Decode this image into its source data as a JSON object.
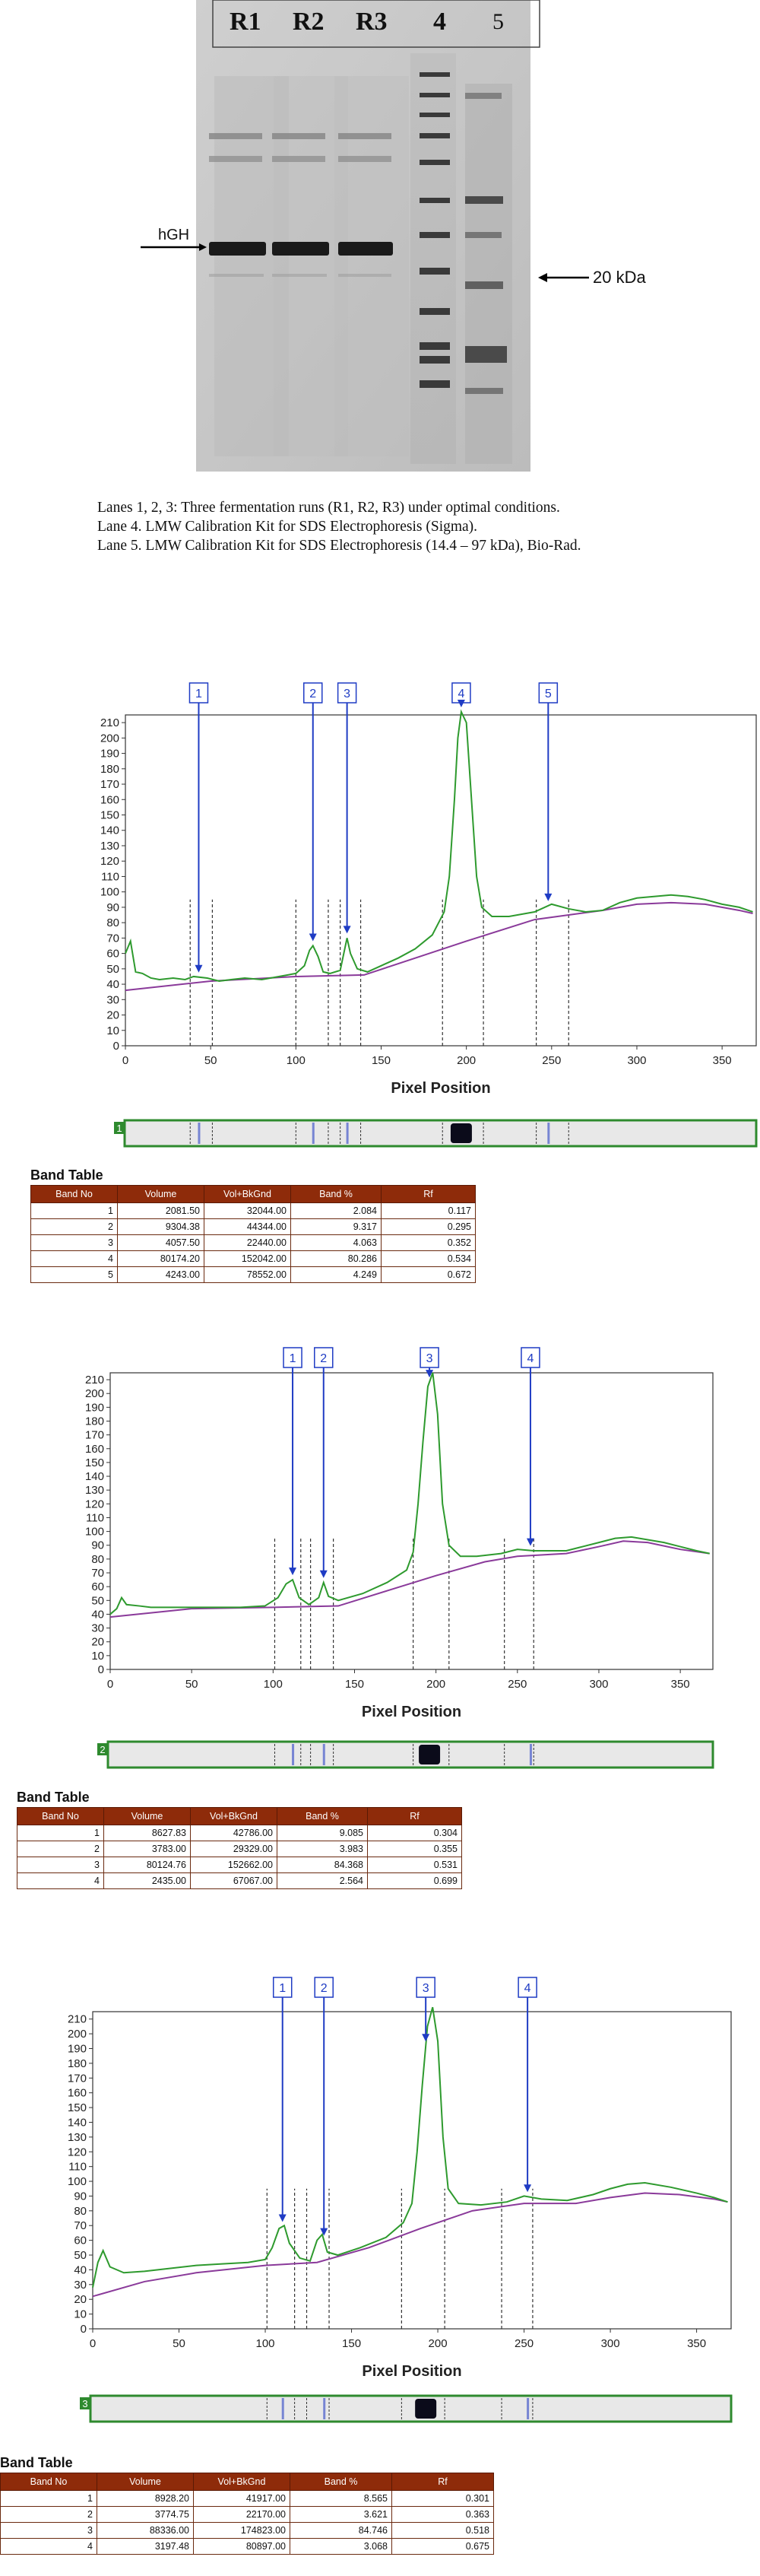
{
  "gel": {
    "lane_labels": [
      "R1",
      "R2",
      "R3",
      "4",
      "5"
    ],
    "hgh_label": "hGH",
    "kda_label": "20 kDa",
    "caption_lines": [
      "Lanes 1, 2, 3: Three fermentation runs (R1, R2, R3) under optimal conditions.",
      "Lane 4. LMW Calibration Kit for SDS Electrophoresis (Sigma).",
      "Lane 5. LMW Calibration Kit for SDS Electrophoresis (14.4 – 97 kDa), Bio-Rad."
    ]
  },
  "colors": {
    "profile_line": "#2e9a2e",
    "baseline": "#8a3a9a",
    "band_marker": "#1f3cc4",
    "table_header": "#8e2b0a",
    "lane_strip_border": "#2e8a2e"
  },
  "table_headers": [
    "Band No",
    "Volume",
    "Vol+BkGnd",
    "Band %",
    "Rf"
  ],
  "chart_data": [
    {
      "type": "line",
      "lane_number": "1",
      "xlabel": "Pixel Position",
      "xlim": [
        0,
        370
      ],
      "ylim": [
        0,
        215
      ],
      "x_ticks": [
        0,
        50,
        100,
        150,
        200,
        250,
        300,
        350
      ],
      "y_ticks": [
        0,
        10,
        20,
        30,
        40,
        50,
        60,
        70,
        80,
        90,
        100,
        110,
        120,
        130,
        140,
        150,
        160,
        170,
        180,
        190,
        200,
        210
      ],
      "profile": [
        [
          0,
          60
        ],
        [
          3,
          68
        ],
        [
          6,
          48
        ],
        [
          10,
          47
        ],
        [
          15,
          44
        ],
        [
          20,
          43
        ],
        [
          28,
          44
        ],
        [
          35,
          43
        ],
        [
          40,
          45
        ],
        [
          48,
          44
        ],
        [
          55,
          42
        ],
        [
          62,
          43
        ],
        [
          70,
          44
        ],
        [
          80,
          43
        ],
        [
          90,
          45
        ],
        [
          100,
          47
        ],
        [
          105,
          52
        ],
        [
          108,
          62
        ],
        [
          110,
          65
        ],
        [
          113,
          58
        ],
        [
          116,
          48
        ],
        [
          120,
          47
        ],
        [
          126,
          49
        ],
        [
          130,
          70
        ],
        [
          132,
          60
        ],
        [
          136,
          50
        ],
        [
          142,
          48
        ],
        [
          150,
          52
        ],
        [
          160,
          57
        ],
        [
          170,
          63
        ],
        [
          180,
          72
        ],
        [
          187,
          87
        ],
        [
          190,
          110
        ],
        [
          193,
          160
        ],
        [
          195,
          200
        ],
        [
          197,
          217
        ],
        [
          200,
          210
        ],
        [
          203,
          160
        ],
        [
          206,
          110
        ],
        [
          209,
          90
        ],
        [
          215,
          84
        ],
        [
          225,
          84
        ],
        [
          240,
          87
        ],
        [
          250,
          92
        ],
        [
          260,
          89
        ],
        [
          270,
          87
        ],
        [
          280,
          88
        ],
        [
          290,
          93
        ],
        [
          300,
          96
        ],
        [
          310,
          97
        ],
        [
          320,
          98
        ],
        [
          330,
          97
        ],
        [
          340,
          95
        ],
        [
          350,
          92
        ],
        [
          360,
          90
        ],
        [
          368,
          87
        ]
      ],
      "baseline": [
        [
          0,
          36
        ],
        [
          50,
          42
        ],
        [
          100,
          45
        ],
        [
          140,
          46
        ],
        [
          170,
          57
        ],
        [
          200,
          68
        ],
        [
          240,
          82
        ],
        [
          260,
          85
        ],
        [
          280,
          88
        ],
        [
          300,
          92
        ],
        [
          320,
          93
        ],
        [
          340,
          92
        ],
        [
          360,
          88
        ],
        [
          368,
          86
        ]
      ],
      "markers": [
        {
          "label": "1",
          "x": 43
        },
        {
          "label": "2",
          "x": 110
        },
        {
          "label": "3",
          "x": 130
        },
        {
          "label": "4",
          "x": 197
        },
        {
          "label": "5",
          "x": 248
        }
      ],
      "boundaries": [
        38,
        51,
        100,
        119,
        126,
        138,
        186,
        210,
        241,
        260
      ],
      "bands": [
        {
          "band_no": "1",
          "volume": "2081.50",
          "vol_bkgnd": "32044.00",
          "band_pct": "2.084",
          "rf": "0.117"
        },
        {
          "band_no": "2",
          "volume": "9304.38",
          "vol_bkgnd": "44344.00",
          "band_pct": "9.317",
          "rf": "0.295"
        },
        {
          "band_no": "3",
          "volume": "4057.50",
          "vol_bkgnd": "22440.00",
          "band_pct": "4.063",
          "rf": "0.352"
        },
        {
          "band_no": "4",
          "volume": "80174.20",
          "vol_bkgnd": "152042.00",
          "band_pct": "80.286",
          "rf": "0.534"
        },
        {
          "band_no": "5",
          "volume": "4243.00",
          "vol_bkgnd": "78552.00",
          "band_pct": "4.249",
          "rf": "0.672"
        }
      ]
    },
    {
      "type": "line",
      "lane_number": "2",
      "xlabel": "Pixel Position",
      "xlim": [
        0,
        370
      ],
      "ylim": [
        0,
        215
      ],
      "x_ticks": [
        0,
        50,
        100,
        150,
        200,
        250,
        300,
        350
      ],
      "y_ticks": [
        0,
        10,
        20,
        30,
        40,
        50,
        60,
        70,
        80,
        90,
        100,
        110,
        120,
        130,
        140,
        150,
        160,
        170,
        180,
        190,
        200,
        210
      ],
      "profile": [
        [
          0,
          40
        ],
        [
          4,
          44
        ],
        [
          7,
          52
        ],
        [
          10,
          47
        ],
        [
          18,
          46
        ],
        [
          25,
          45
        ],
        [
          40,
          45
        ],
        [
          60,
          45
        ],
        [
          80,
          45
        ],
        [
          95,
          46
        ],
        [
          103,
          52
        ],
        [
          108,
          62
        ],
        [
          112,
          65
        ],
        [
          116,
          52
        ],
        [
          122,
          47
        ],
        [
          128,
          52
        ],
        [
          131,
          63
        ],
        [
          134,
          53
        ],
        [
          140,
          50
        ],
        [
          155,
          55
        ],
        [
          170,
          63
        ],
        [
          182,
          72
        ],
        [
          186,
          85
        ],
        [
          189,
          120
        ],
        [
          192,
          165
        ],
        [
          195,
          205
        ],
        [
          198,
          215
        ],
        [
          201,
          185
        ],
        [
          204,
          120
        ],
        [
          208,
          90
        ],
        [
          215,
          82
        ],
        [
          225,
          82
        ],
        [
          240,
          84
        ],
        [
          250,
          87
        ],
        [
          260,
          86
        ],
        [
          270,
          86
        ],
        [
          280,
          86
        ],
        [
          290,
          89
        ],
        [
          300,
          92
        ],
        [
          310,
          95
        ],
        [
          320,
          96
        ],
        [
          330,
          94
        ],
        [
          340,
          92
        ],
        [
          350,
          89
        ],
        [
          360,
          86
        ],
        [
          368,
          84
        ]
      ],
      "baseline": [
        [
          0,
          38
        ],
        [
          50,
          44
        ],
        [
          100,
          45
        ],
        [
          140,
          46
        ],
        [
          170,
          57
        ],
        [
          200,
          68
        ],
        [
          230,
          78
        ],
        [
          250,
          82
        ],
        [
          280,
          84
        ],
        [
          300,
          89
        ],
        [
          315,
          93
        ],
        [
          330,
          92
        ],
        [
          350,
          87
        ],
        [
          368,
          84
        ]
      ],
      "markers": [
        {
          "label": "1",
          "x": 112
        },
        {
          "label": "2",
          "x": 131
        },
        {
          "label": "3",
          "x": 196
        },
        {
          "label": "4",
          "x": 258
        }
      ],
      "boundaries": [
        101,
        117,
        123,
        137,
        186,
        208,
        242,
        260
      ],
      "bands": [
        {
          "band_no": "1",
          "volume": "8627.83",
          "vol_bkgnd": "42786.00",
          "band_pct": "9.085",
          "rf": "0.304"
        },
        {
          "band_no": "2",
          "volume": "3783.00",
          "vol_bkgnd": "29329.00",
          "band_pct": "3.983",
          "rf": "0.355"
        },
        {
          "band_no": "3",
          "volume": "80124.76",
          "vol_bkgnd": "152662.00",
          "band_pct": "84.368",
          "rf": "0.531"
        },
        {
          "band_no": "4",
          "volume": "2435.00",
          "vol_bkgnd": "67067.00",
          "band_pct": "2.564",
          "rf": "0.699"
        }
      ]
    },
    {
      "type": "line",
      "lane_number": "3",
      "xlabel": "Pixel Position",
      "xlim": [
        0,
        370
      ],
      "ylim": [
        0,
        215
      ],
      "x_ticks": [
        0,
        50,
        100,
        150,
        200,
        250,
        300,
        350
      ],
      "y_ticks": [
        0,
        10,
        20,
        30,
        40,
        50,
        60,
        70,
        80,
        90,
        100,
        110,
        120,
        130,
        140,
        150,
        160,
        170,
        180,
        190,
        200,
        210
      ],
      "profile": [
        [
          0,
          28
        ],
        [
          3,
          45
        ],
        [
          6,
          53
        ],
        [
          10,
          42
        ],
        [
          18,
          38
        ],
        [
          30,
          39
        ],
        [
          45,
          41
        ],
        [
          60,
          43
        ],
        [
          75,
          44
        ],
        [
          90,
          45
        ],
        [
          100,
          47
        ],
        [
          104,
          55
        ],
        [
          108,
          68
        ],
        [
          111,
          70
        ],
        [
          114,
          58
        ],
        [
          120,
          48
        ],
        [
          126,
          46
        ],
        [
          130,
          60
        ],
        [
          133,
          64
        ],
        [
          136,
          52
        ],
        [
          142,
          50
        ],
        [
          155,
          55
        ],
        [
          170,
          62
        ],
        [
          180,
          72
        ],
        [
          185,
          85
        ],
        [
          188,
          120
        ],
        [
          191,
          165
        ],
        [
          194,
          205
        ],
        [
          197,
          218
        ],
        [
          200,
          195
        ],
        [
          203,
          130
        ],
        [
          206,
          95
        ],
        [
          212,
          85
        ],
        [
          225,
          84
        ],
        [
          240,
          86
        ],
        [
          250,
          90
        ],
        [
          260,
          88
        ],
        [
          275,
          87
        ],
        [
          290,
          91
        ],
        [
          300,
          95
        ],
        [
          310,
          98
        ],
        [
          320,
          99
        ],
        [
          335,
          96
        ],
        [
          350,
          92
        ],
        [
          360,
          89
        ],
        [
          368,
          86
        ]
      ],
      "baseline": [
        [
          0,
          22
        ],
        [
          30,
          32
        ],
        [
          60,
          38
        ],
        [
          100,
          43
        ],
        [
          130,
          45
        ],
        [
          160,
          55
        ],
        [
          190,
          68
        ],
        [
          220,
          80
        ],
        [
          250,
          85
        ],
        [
          280,
          85
        ],
        [
          300,
          89
        ],
        [
          320,
          92
        ],
        [
          340,
          91
        ],
        [
          360,
          88
        ],
        [
          368,
          86
        ]
      ],
      "markers": [
        {
          "label": "1",
          "x": 110
        },
        {
          "label": "2",
          "x": 134
        },
        {
          "label": "3",
          "x": 193
        },
        {
          "label": "4",
          "x": 252
        }
      ],
      "boundaries": [
        101,
        117,
        124,
        137,
        179,
        204,
        237,
        255
      ],
      "bands": [
        {
          "band_no": "1",
          "volume": "8928.20",
          "vol_bkgnd": "41917.00",
          "band_pct": "8.565",
          "rf": "0.301"
        },
        {
          "band_no": "2",
          "volume": "3774.75",
          "vol_bkgnd": "22170.00",
          "band_pct": "3.621",
          "rf": "0.363"
        },
        {
          "band_no": "3",
          "volume": "88336.00",
          "vol_bkgnd": "174823.00",
          "band_pct": "84.746",
          "rf": "0.518"
        },
        {
          "band_no": "4",
          "volume": "3197.48",
          "vol_bkgnd": "80897.00",
          "band_pct": "3.068",
          "rf": "0.675"
        }
      ]
    }
  ]
}
